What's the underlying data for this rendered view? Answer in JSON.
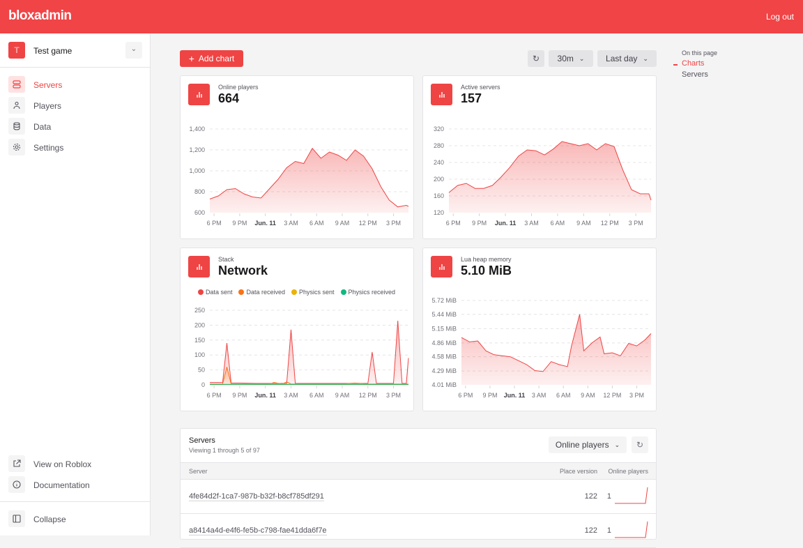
{
  "header": {
    "logo": "bloxadmin",
    "logout": "Log out"
  },
  "sidebar": {
    "game": {
      "initial": "T",
      "name": "Test game"
    },
    "items": [
      {
        "label": "Servers",
        "icon": "server-icon",
        "active": true
      },
      {
        "label": "Players",
        "icon": "user-icon"
      },
      {
        "label": "Data",
        "icon": "database-icon"
      },
      {
        "label": "Settings",
        "icon": "gear-icon"
      }
    ],
    "bottom": [
      {
        "label": "View on Roblox",
        "icon": "external-link-icon"
      },
      {
        "label": "Documentation",
        "icon": "info-icon"
      }
    ],
    "collapse": "Collapse"
  },
  "toolbar": {
    "add_chart": "Add chart",
    "interval": "30m",
    "range": "Last day"
  },
  "toc": {
    "title": "On this page",
    "items": [
      "Charts",
      "Servers"
    ]
  },
  "colors": {
    "accent": "#ef4444",
    "data_sent": "#ef4444",
    "data_received": "#f97316",
    "physics_sent": "#eab308",
    "physics_received": "#10b981"
  },
  "chart_data": [
    {
      "type": "area",
      "title": "Online players",
      "value": "664",
      "x": [
        "5:30 PM",
        "6:30 PM",
        "7:30 PM",
        "8:30 PM",
        "9:30 PM",
        "10:30 PM",
        "11:30 PM",
        "12:30 AM",
        "1:30 AM",
        "2:30 AM",
        "3:30 AM",
        "4:30 AM",
        "5:30 AM",
        "6:30 AM",
        "7:30 AM",
        "8:30 AM",
        "9:30 AM",
        "10:30 AM",
        "11:30 AM",
        "12:30 PM",
        "1:30 PM",
        "2:30 PM",
        "3:30 PM",
        "4:30 PM",
        "4:45 PM"
      ],
      "series": [
        {
          "values": [
            730,
            760,
            820,
            830,
            780,
            750,
            740,
            830,
            920,
            1030,
            1090,
            1070,
            1215,
            1120,
            1180,
            1150,
            1100,
            1200,
            1140,
            1020,
            850,
            720,
            655,
            670,
            660
          ]
        }
      ],
      "ylim": [
        600,
        1400
      ],
      "yticks": [
        {
          "v": 600,
          "l": "600"
        },
        {
          "v": 800,
          "l": "800"
        },
        {
          "v": 1000,
          "l": "1,000"
        },
        {
          "v": 1200,
          "l": "1,200"
        },
        {
          "v": 1400,
          "l": "1,400"
        }
      ],
      "xticks": [
        "6 PM",
        "9 PM",
        "Jun. 11",
        "3 AM",
        "6 AM",
        "9 AM",
        "12 PM",
        "3 PM"
      ],
      "grid": true
    },
    {
      "type": "area",
      "title": "Active servers",
      "value": "157",
      "x": [
        "5:30 PM",
        "6:30 PM",
        "7:30 PM",
        "8:30 PM",
        "9:30 PM",
        "10:30 PM",
        "11:30 PM",
        "12:30 AM",
        "1:30 AM",
        "2:30 AM",
        "3:30 AM",
        "4:30 AM",
        "5:30 AM",
        "6:30 AM",
        "7:30 AM",
        "8:30 AM",
        "9:30 AM",
        "10:30 AM",
        "11:30 AM",
        "12:30 PM",
        "1:30 PM",
        "2:30 PM",
        "3:30 PM",
        "4:30 PM",
        "4:45 PM"
      ],
      "series": [
        {
          "values": [
            168,
            185,
            190,
            178,
            178,
            185,
            205,
            228,
            255,
            270,
            268,
            258,
            272,
            290,
            285,
            280,
            285,
            270,
            285,
            278,
            222,
            175,
            165,
            165,
            150
          ]
        }
      ],
      "ylim": [
        120,
        320
      ],
      "yticks": [
        {
          "v": 120,
          "l": "120"
        },
        {
          "v": 160,
          "l": "160"
        },
        {
          "v": 200,
          "l": "200"
        },
        {
          "v": 240,
          "l": "240"
        },
        {
          "v": 280,
          "l": "280"
        },
        {
          "v": 320,
          "l": "320"
        }
      ],
      "xticks": [
        "6 PM",
        "9 PM",
        "Jun. 11",
        "3 AM",
        "6 AM",
        "9 AM",
        "12 PM",
        "3 PM"
      ],
      "grid": true
    },
    {
      "type": "area",
      "title": "Stack",
      "value": "Network",
      "legend": "top",
      "x": [
        "5:30 PM",
        "7:00 PM",
        "7:30 PM",
        "8:00 PM",
        "9:00 PM",
        "11:00 PM",
        "12:30 AM",
        "1:00 AM",
        "2:00 AM",
        "2:30 AM",
        "3:00 AM",
        "3:30 AM",
        "5:00 AM",
        "9:00 AM",
        "10:30 AM",
        "12:00 PM",
        "12:30 PM",
        "1:00 PM",
        "3:00 PM",
        "3:30 PM",
        "4:00 PM",
        "4:30 PM",
        "4:45 PM"
      ],
      "series": [
        {
          "name": "Data sent",
          "values": [
            8,
            8,
            140,
            6,
            6,
            5,
            5,
            5,
            5,
            5,
            185,
            5,
            5,
            5,
            5,
            5,
            110,
            5,
            5,
            215,
            5,
            5,
            90
          ]
        },
        {
          "name": "Data received",
          "values": [
            3,
            3,
            60,
            3,
            3,
            3,
            3,
            8,
            3,
            10,
            3,
            3,
            3,
            3,
            6,
            3,
            3,
            3,
            3,
            3,
            3,
            3,
            3
          ]
        },
        {
          "name": "Physics sent",
          "values": [
            2,
            2,
            2,
            2,
            2,
            2,
            2,
            2,
            2,
            2,
            2,
            2,
            2,
            2,
            2,
            2,
            2,
            2,
            2,
            2,
            2,
            2,
            2
          ]
        },
        {
          "name": "Physics received",
          "values": [
            1,
            1,
            1,
            1,
            1,
            1,
            1,
            1,
            1,
            1,
            1,
            1,
            1,
            1,
            1,
            1,
            1,
            1,
            1,
            1,
            1,
            1,
            1
          ]
        }
      ],
      "ylim": [
        0,
        250
      ],
      "yticks": [
        {
          "v": 0,
          "l": "0"
        },
        {
          "v": 50,
          "l": "50"
        },
        {
          "v": 100,
          "l": "100"
        },
        {
          "v": 150,
          "l": "150"
        },
        {
          "v": 200,
          "l": "200"
        },
        {
          "v": 250,
          "l": "250"
        }
      ],
      "xticks": [
        "6 PM",
        "9 PM",
        "Jun. 11",
        "3 AM",
        "6 AM",
        "9 AM",
        "12 PM",
        "3 PM"
      ],
      "grid": true
    },
    {
      "type": "area",
      "title": "Lua heap memory",
      "value": "5.10 MiB",
      "x": [
        "5:30 PM",
        "6:30 PM",
        "7:30 PM",
        "8:30 PM",
        "9:30 PM",
        "10:30 PM",
        "11:30 PM",
        "12:30 AM",
        "1:30 AM",
        "2:30 AM",
        "3:30 AM",
        "4:30 AM",
        "5:30 AM",
        "6:30 AM",
        "7:00 AM",
        "8:00 AM",
        "8:30 AM",
        "9:30 AM",
        "10:30 AM",
        "11:00 AM",
        "12:00 PM",
        "1:00 PM",
        "2:00 PM",
        "3:00 PM",
        "4:00 PM",
        "4:45 PM"
      ],
      "series": [
        {
          "values": [
            4.97,
            4.88,
            4.9,
            4.7,
            4.62,
            4.6,
            4.58,
            4.5,
            4.42,
            4.3,
            4.28,
            4.48,
            4.42,
            4.38,
            4.8,
            5.44,
            4.7,
            4.86,
            4.98,
            4.64,
            4.66,
            4.6,
            4.85,
            4.8,
            4.92,
            5.05
          ]
        }
      ],
      "ylim": [
        4.01,
        5.72
      ],
      "yticks": [
        {
          "v": 4.01,
          "l": "4.01 MiB"
        },
        {
          "v": 4.29,
          "l": "4.29 MiB"
        },
        {
          "v": 4.58,
          "l": "4.58 MiB"
        },
        {
          "v": 4.86,
          "l": "4.86 MiB"
        },
        {
          "v": 5.15,
          "l": "5.15 MiB"
        },
        {
          "v": 5.44,
          "l": "5.44 MiB"
        },
        {
          "v": 5.72,
          "l": "5.72 MiB"
        }
      ],
      "xticks": [
        "6 PM",
        "9 PM",
        "Jun. 11",
        "3 AM",
        "6 AM",
        "9 AM",
        "12 PM",
        "3 PM"
      ],
      "grid": true
    }
  ],
  "servers": {
    "title": "Servers",
    "subtitle": "Viewing 1 through 5 of 97",
    "sort": "Online players",
    "columns": [
      "Server",
      "Place version",
      "Online players"
    ],
    "rows": [
      {
        "id": "4fe84d2f-1ca7-987b-b32f-b8cf785df291",
        "place_version": "122",
        "online": "1"
      },
      {
        "id": "a8414a4d-e4f6-fe5b-c798-fae41dda6f7e",
        "place_version": "122",
        "online": "1"
      }
    ]
  }
}
